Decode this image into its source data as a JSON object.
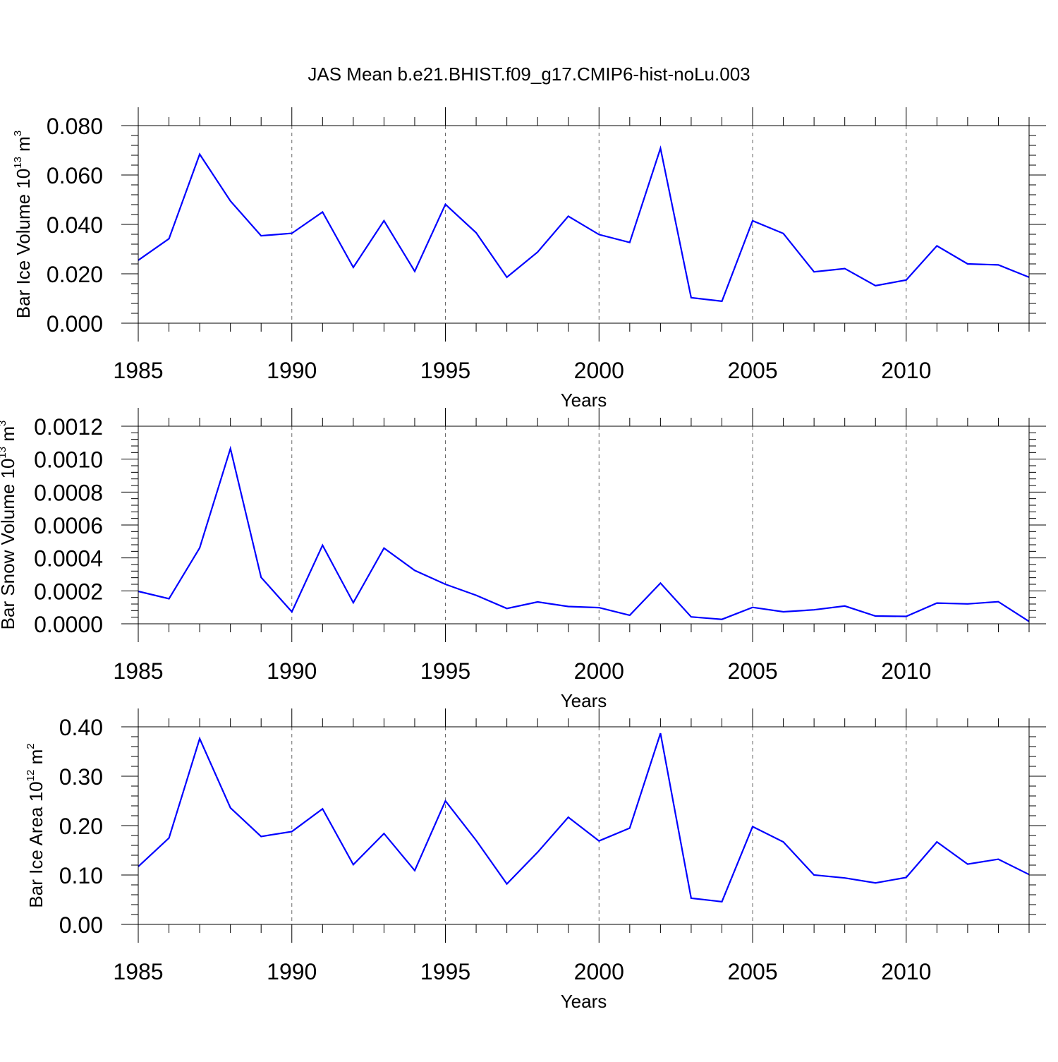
{
  "title": "JAS Mean b.e21.BHIST.f09_g17.CMIP6-hist-noLu.003",
  "style": {
    "line_color": "#0000ff",
    "axis_color": "#000000",
    "grid_color": "#000000",
    "background": "#ffffff"
  },
  "chart_data": [
    {
      "type": "line",
      "title": "JAS Mean b.e21.BHIST.f09_g17.CMIP6-hist-noLu.003",
      "xlabel": "Years",
      "ylabel": {
        "prefix": "Bar Ice Volume 10",
        "exp": "13",
        "unit": " m",
        "unit_exp": "3"
      },
      "xlim": [
        1985,
        2014
      ],
      "ylim": [
        0,
        0.08
      ],
      "xticks": [
        1985,
        1990,
        1995,
        2000,
        2005,
        2010
      ],
      "yticks": [
        "0.000",
        "0.020",
        "0.040",
        "0.060",
        "0.080"
      ],
      "grid": "vertical dashed at labeled years",
      "x": [
        1985,
        1986,
        1987,
        1988,
        1989,
        1990,
        1991,
        1992,
        1993,
        1994,
        1995,
        1996,
        1997,
        1998,
        1999,
        2000,
        2001,
        2002,
        2003,
        2004,
        2005,
        2006,
        2007,
        2008,
        2009,
        2010,
        2011,
        2012,
        2013,
        2014
      ],
      "values": [
        0.0255,
        0.0342,
        0.0684,
        0.0495,
        0.0354,
        0.0364,
        0.045,
        0.0226,
        0.0415,
        0.021,
        0.0481,
        0.0366,
        0.0186,
        0.0288,
        0.0433,
        0.0359,
        0.0327,
        0.0708,
        0.0103,
        0.0089,
        0.0415,
        0.0363,
        0.0208,
        0.0221,
        0.0152,
        0.0175,
        0.0313,
        0.024,
        0.0236,
        0.0186
      ]
    },
    {
      "type": "line",
      "xlabel": "Years",
      "ylabel": {
        "prefix": "Bar Snow Volume 10",
        "exp": "13",
        "unit": " m",
        "unit_exp": "3"
      },
      "xlim": [
        1985,
        2014
      ],
      "ylim": [
        0,
        0.0012
      ],
      "xticks": [
        1985,
        1990,
        1995,
        2000,
        2005,
        2010
      ],
      "yticks": [
        "0.0000",
        "0.0002",
        "0.0004",
        "0.0006",
        "0.0008",
        "0.0010",
        "0.0012"
      ],
      "grid": "vertical dashed at labeled years",
      "x": [
        1985,
        1986,
        1987,
        1988,
        1989,
        1990,
        1991,
        1992,
        1993,
        1994,
        1995,
        1996,
        1997,
        1998,
        1999,
        2000,
        2001,
        2002,
        2003,
        2004,
        2005,
        2006,
        2007,
        2008,
        2009,
        2010,
        2011,
        2012,
        2013,
        2014
      ],
      "values": [
        0.000197,
        0.000152,
        0.000461,
        0.001064,
        0.000282,
        7.3e-05,
        0.000477,
        0.000128,
        0.00046,
        0.000324,
        0.00024,
        0.000173,
        9.3e-05,
        0.000133,
        0.000105,
        9.8e-05,
        5.2e-05,
        0.000247,
        4.2e-05,
        2.7e-05,
        0.0001,
        7.3e-05,
        8.5e-05,
        0.000108,
        4.7e-05,
        4.5e-05,
        0.000126,
        0.000121,
        0.000134,
        1.4e-05
      ]
    },
    {
      "type": "line",
      "xlabel": "Years",
      "ylabel": {
        "prefix": "Bar Ice Area 10",
        "exp": "12",
        "unit": " m",
        "unit_exp": "2"
      },
      "xlim": [
        1985,
        2014
      ],
      "ylim": [
        0,
        0.4
      ],
      "xticks": [
        1985,
        1990,
        1995,
        2000,
        2005,
        2010
      ],
      "yticks": [
        "0.00",
        "0.10",
        "0.20",
        "0.30",
        "0.40"
      ],
      "grid": "vertical dashed at labeled years",
      "x": [
        1985,
        1986,
        1987,
        1988,
        1989,
        1990,
        1991,
        1992,
        1993,
        1994,
        1995,
        1996,
        1997,
        1998,
        1999,
        2000,
        2001,
        2002,
        2003,
        2004,
        2005,
        2006,
        2007,
        2008,
        2009,
        2010,
        2011,
        2012,
        2013,
        2014
      ],
      "values": [
        0.117,
        0.175,
        0.376,
        0.236,
        0.178,
        0.188,
        0.234,
        0.121,
        0.184,
        0.109,
        0.25,
        0.17,
        0.082,
        0.146,
        0.217,
        0.169,
        0.195,
        0.387,
        0.053,
        0.046,
        0.198,
        0.167,
        0.1,
        0.094,
        0.084,
        0.095,
        0.167,
        0.122,
        0.132,
        0.101
      ]
    }
  ]
}
